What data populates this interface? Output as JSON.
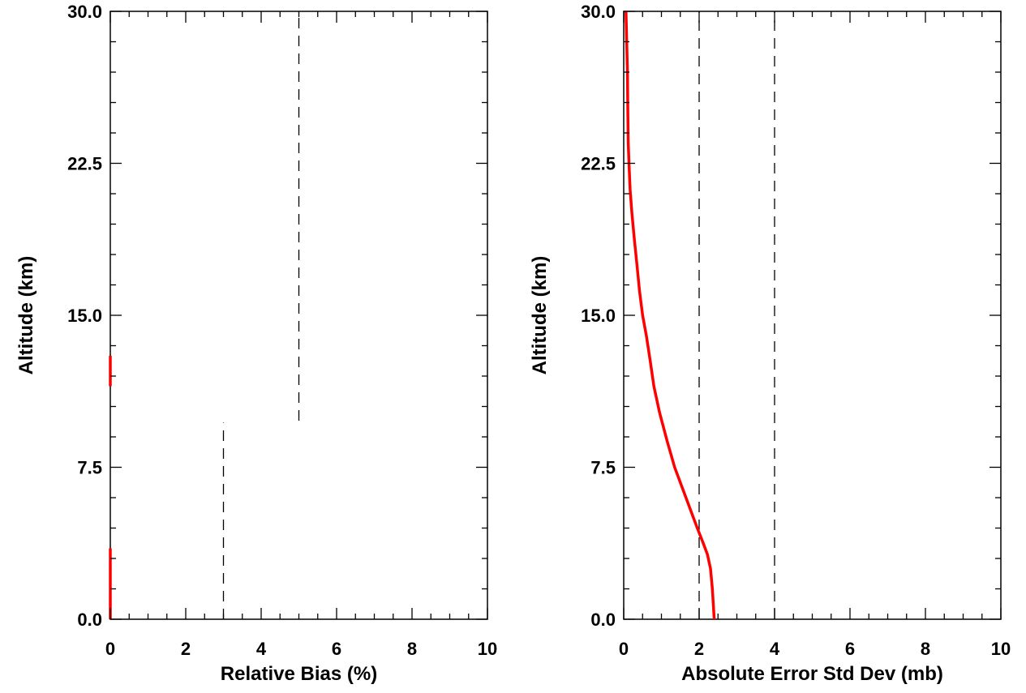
{
  "colors": {
    "background": "#ffffff",
    "axes": "#000000",
    "series": "#ff0000",
    "reference_lines": "#000000"
  },
  "chart_data": [
    {
      "type": "line",
      "title": "",
      "xlabel": "Relative Bias (%)",
      "ylabel": "Altitude (km)",
      "xlim": [
        0,
        10
      ],
      "ylim": [
        0,
        30
      ],
      "x_ticks": [
        0,
        2,
        4,
        6,
        8,
        10
      ],
      "x_minor_step": 0.5,
      "y_ticks": [
        "0.0",
        "7.5",
        "15.0",
        "22.5",
        "30.0"
      ],
      "y_minor_step": 1.5,
      "grid": false,
      "legend": "none",
      "series": [
        {
          "style": "solid",
          "segments": [
            [
              {
                "x": 0,
                "y": 0
              },
              {
                "x": 0,
                "y": 3.5
              }
            ],
            [
              {
                "x": 0,
                "y": 11.5
              },
              {
                "x": 0,
                "y": 13.0
              }
            ]
          ]
        }
      ],
      "reference_lines": [
        {
          "x": 3,
          "y_range": [
            0,
            9.7
          ],
          "style": "dashed"
        },
        {
          "x": 5,
          "y_range": [
            9.8,
            29.7
          ],
          "style": "dashed"
        }
      ]
    },
    {
      "type": "line",
      "title": "",
      "xlabel": "Absolute Error Std Dev (mb)",
      "ylabel": "Altitude (km)",
      "xlim": [
        0,
        10
      ],
      "ylim": [
        0,
        30
      ],
      "x_ticks": [
        0,
        2,
        4,
        6,
        8,
        10
      ],
      "x_minor_step": 0.5,
      "y_ticks": [
        "0.0",
        "7.5",
        "15.0",
        "22.5",
        "30.0"
      ],
      "y_minor_step": 1.5,
      "grid": false,
      "legend": "none",
      "series": [
        {
          "style": "solid",
          "segments": [
            [
              {
                "x": 2.4,
                "y": 0.0
              },
              {
                "x": 2.35,
                "y": 1.5
              },
              {
                "x": 2.3,
                "y": 2.5
              },
              {
                "x": 2.22,
                "y": 3.2
              },
              {
                "x": 2.1,
                "y": 3.8
              },
              {
                "x": 1.95,
                "y": 4.5
              },
              {
                "x": 1.75,
                "y": 5.5
              },
              {
                "x": 1.55,
                "y": 6.5
              },
              {
                "x": 1.35,
                "y": 7.5
              },
              {
                "x": 1.15,
                "y": 8.8
              },
              {
                "x": 0.95,
                "y": 10.2
              },
              {
                "x": 0.8,
                "y": 11.5
              },
              {
                "x": 0.7,
                "y": 12.8
              },
              {
                "x": 0.6,
                "y": 14.0
              },
              {
                "x": 0.5,
                "y": 15.0
              },
              {
                "x": 0.42,
                "y": 16.2
              },
              {
                "x": 0.35,
                "y": 17.5
              },
              {
                "x": 0.28,
                "y": 18.8
              },
              {
                "x": 0.22,
                "y": 20.0
              },
              {
                "x": 0.17,
                "y": 21.2
              },
              {
                "x": 0.14,
                "y": 22.5
              },
              {
                "x": 0.12,
                "y": 23.5
              },
              {
                "x": 0.11,
                "y": 25.0
              },
              {
                "x": 0.1,
                "y": 27.0
              },
              {
                "x": 0.08,
                "y": 28.5
              },
              {
                "x": 0.06,
                "y": 30.0
              }
            ]
          ]
        }
      ],
      "reference_lines": [
        {
          "x": 2,
          "y_range": [
            0,
            30
          ],
          "style": "dashed"
        },
        {
          "x": 4,
          "y_range": [
            0,
            30
          ],
          "style": "dashed"
        }
      ]
    }
  ]
}
